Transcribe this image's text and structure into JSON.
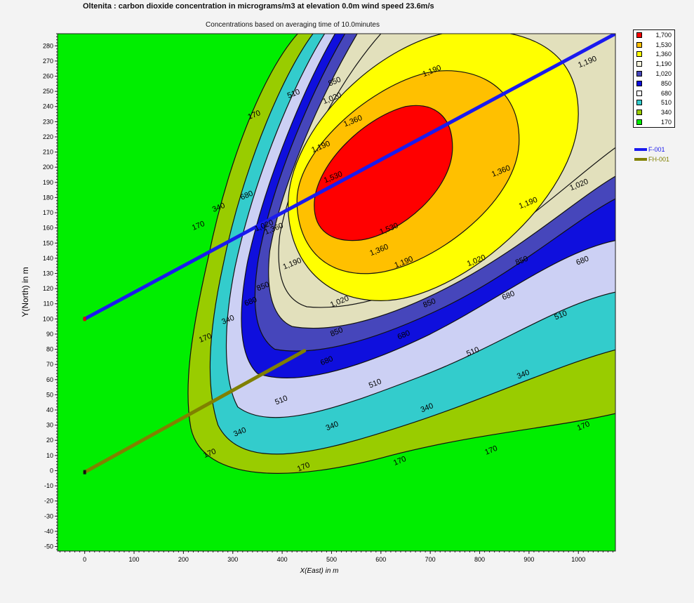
{
  "chart_data": {
    "type": "contour",
    "title": "Oltenita : carbon dioxide concentration in micrograms/m3 at elevation 0.0m wind speed 23.6m/s",
    "subtitle": "Concentrations based on averaging time of 10.0minutes",
    "xlabel": "X(East) in m",
    "ylabel": "Y(North) in m",
    "xlim": [
      -55,
      1075
    ],
    "ylim": [
      -53,
      288
    ],
    "x_ticks": [
      0,
      100,
      200,
      300,
      400,
      500,
      600,
      700,
      800,
      900,
      1000
    ],
    "y_ticks": [
      -50,
      -40,
      -30,
      -20,
      -10,
      0,
      10,
      20,
      30,
      40,
      50,
      60,
      70,
      80,
      90,
      100,
      110,
      120,
      130,
      140,
      150,
      160,
      170,
      180,
      190,
      200,
      210,
      220,
      230,
      240,
      250,
      260,
      270,
      280
    ],
    "background_color": "#00ee00",
    "levels": [
      {
        "value": 170,
        "label": "170",
        "color": "#99cc00"
      },
      {
        "value": 340,
        "label": "340",
        "color": "#33cccc"
      },
      {
        "value": 510,
        "label": "510",
        "color": "#ccd0f4"
      },
      {
        "value": 680,
        "label": "680",
        "color": "#0f0fdd"
      },
      {
        "value": 850,
        "label": "850",
        "color": "#4646bb"
      },
      {
        "value": 1020,
        "label": "1,020",
        "color": "#e2e0bc"
      },
      {
        "value": 1190,
        "label": "1,190",
        "color": "#ffff00"
      },
      {
        "value": 1360,
        "label": "1,360",
        "color": "#ffc000"
      },
      {
        "value": 1530,
        "label": "1,530",
        "color": "#ff0000"
      }
    ],
    "legend": [
      {
        "label": "1,700",
        "color": "#ff0000"
      },
      {
        "label": "1,530",
        "color": "#ffc000"
      },
      {
        "label": "1,360",
        "color": "#ffff00"
      },
      {
        "label": "1,190",
        "color": "#f4f2dc"
      },
      {
        "label": "1,020",
        "color": "#4646bb"
      },
      {
        "label": "850",
        "color": "#0f0fdd"
      },
      {
        "label": "680",
        "color": "#ffffff"
      },
      {
        "label": "510",
        "color": "#33cccc"
      },
      {
        "label": "340",
        "color": "#99cc00"
      },
      {
        "label": "170",
        "color": "#00ee00"
      }
    ],
    "sources": [
      {
        "name": "F-001",
        "color": "#1a1aee",
        "start": [
          0,
          100
        ],
        "end": [
          1075,
          288
        ]
      },
      {
        "name": "FH-001",
        "color": "#808000",
        "start": [
          0,
          -1
        ],
        "end": [
          445,
          79
        ]
      }
    ],
    "contour_labels": [
      {
        "text": "170",
        "x": 345,
        "y": 233
      },
      {
        "text": "510",
        "x": 425,
        "y": 247
      },
      {
        "text": "850",
        "x": 508,
        "y": 255
      },
      {
        "text": "1,020",
        "x": 503,
        "y": 244
      },
      {
        "text": "1,190",
        "x": 705,
        "y": 262
      },
      {
        "text": "1,190",
        "x": 1020,
        "y": 268
      },
      {
        "text": "1,360",
        "x": 545,
        "y": 229
      },
      {
        "text": "1,190",
        "x": 480,
        "y": 212
      },
      {
        "text": "1,530",
        "x": 505,
        "y": 192
      },
      {
        "text": "1,360",
        "x": 845,
        "y": 196
      },
      {
        "text": "1,020",
        "x": 1003,
        "y": 187
      },
      {
        "text": "1,190",
        "x": 900,
        "y": 175
      },
      {
        "text": "680",
        "x": 330,
        "y": 180
      },
      {
        "text": "340",
        "x": 273,
        "y": 172
      },
      {
        "text": "170",
        "x": 232,
        "y": 160
      },
      {
        "text": "1,020",
        "x": 365,
        "y": 160
      },
      {
        "text": "1,360",
        "x": 385,
        "y": 158
      },
      {
        "text": "1,530",
        "x": 618,
        "y": 158
      },
      {
        "text": "1,360",
        "x": 598,
        "y": 144
      },
      {
        "text": "1,190",
        "x": 422,
        "y": 135
      },
      {
        "text": "1,190",
        "x": 648,
        "y": 136
      },
      {
        "text": "1,020",
        "x": 795,
        "y": 137
      },
      {
        "text": "850",
        "x": 887,
        "y": 137
      },
      {
        "text": "680",
        "x": 1010,
        "y": 137
      },
      {
        "text": "850",
        "x": 363,
        "y": 120
      },
      {
        "text": "680",
        "x": 338,
        "y": 110
      },
      {
        "text": "1,020",
        "x": 518,
        "y": 110
      },
      {
        "text": "850",
        "x": 700,
        "y": 109
      },
      {
        "text": "680",
        "x": 860,
        "y": 114
      },
      {
        "text": "510",
        "x": 966,
        "y": 101
      },
      {
        "text": "340",
        "x": 292,
        "y": 98
      },
      {
        "text": "170",
        "x": 246,
        "y": 86
      },
      {
        "text": "850",
        "x": 512,
        "y": 90
      },
      {
        "text": "680",
        "x": 648,
        "y": 88
      },
      {
        "text": "510",
        "x": 788,
        "y": 77
      },
      {
        "text": "680",
        "x": 492,
        "y": 71
      },
      {
        "text": "510",
        "x": 590,
        "y": 56
      },
      {
        "text": "340",
        "x": 890,
        "y": 62
      },
      {
        "text": "510",
        "x": 400,
        "y": 45
      },
      {
        "text": "340",
        "x": 695,
        "y": 40
      },
      {
        "text": "340",
        "x": 503,
        "y": 28
      },
      {
        "text": "340",
        "x": 316,
        "y": 24
      },
      {
        "text": "170",
        "x": 1012,
        "y": 28
      },
      {
        "text": "170",
        "x": 825,
        "y": 12
      },
      {
        "text": "170",
        "x": 255,
        "y": 10
      },
      {
        "text": "170",
        "x": 640,
        "y": 5
      },
      {
        "text": "170",
        "x": 445,
        "y": 1
      }
    ]
  }
}
